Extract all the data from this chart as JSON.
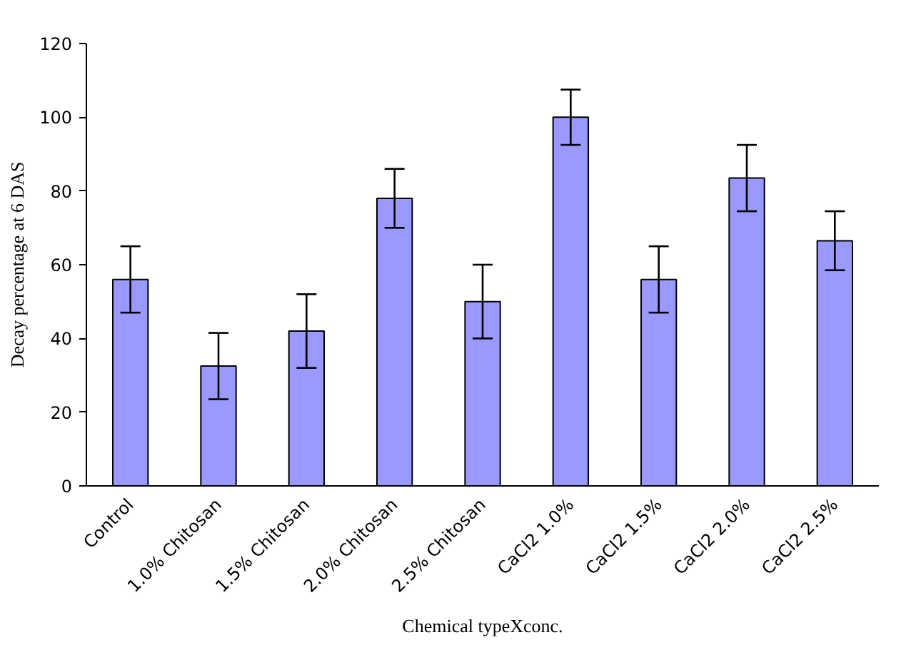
{
  "chart_data": {
    "type": "bar",
    "xlabel": "Chemical typeXconc.",
    "ylabel": "Decay percentage at 6 DAS",
    "categories": [
      "Control",
      "1.0% Chitosan",
      "1.5% Chitosan",
      "2.0% Chitosan",
      "2.5% Chitosan",
      "CaCl2 1.0%",
      "CaCl2 1.5%",
      "CaCl2 2.0%",
      "CaCl2 2.5%"
    ],
    "values": [
      56,
      32.5,
      42,
      78,
      50,
      100,
      56,
      83.5,
      66.5
    ],
    "errors": [
      9,
      9,
      10,
      8,
      10,
      7.5,
      9,
      9,
      8
    ],
    "color": "#9999ff",
    "ylim": [
      0,
      120
    ],
    "yticks": [
      0,
      20,
      40,
      60,
      80,
      100,
      120
    ],
    "grid": false
  }
}
